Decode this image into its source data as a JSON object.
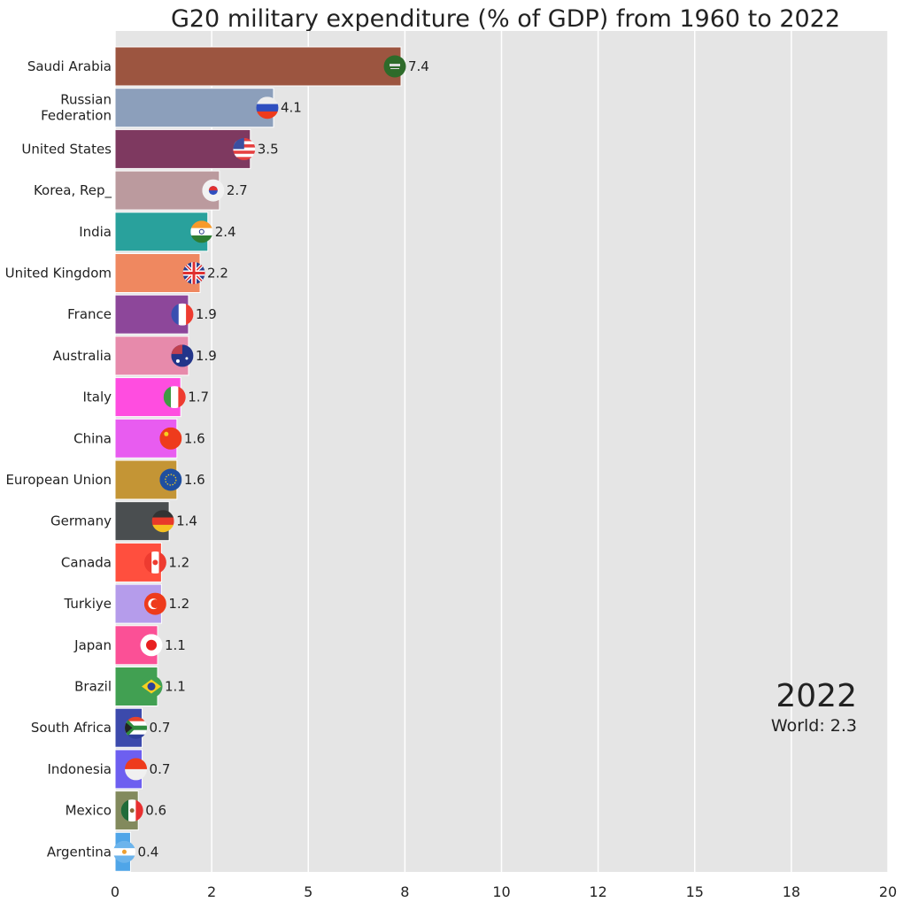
{
  "chart_data": {
    "type": "bar",
    "orientation": "horizontal",
    "title": "G20 military expenditure (% of GDP) from 1960 to 2022",
    "xlim": [
      0,
      20
    ],
    "x_ticks": [
      0,
      2.5,
      5,
      7.5,
      10,
      12.5,
      15,
      17.5,
      20
    ],
    "x_tick_labels": [
      "0",
      "2",
      "5",
      "8",
      "10",
      "12",
      "15",
      "18",
      "20"
    ],
    "grid": true,
    "year_label": "2022",
    "world_label": "World: 2.3",
    "categories": [
      "Saudi Arabia",
      "Russian\nFederation",
      "United States",
      "Korea, Rep_",
      "India",
      "United Kingdom",
      "France",
      "Australia",
      "Italy",
      "China",
      "European Union",
      "Germany",
      "Canada",
      "Turkiye",
      "Japan",
      "Brazil",
      "South Africa",
      "Indonesia",
      "Mexico",
      "Argentina"
    ],
    "values": [
      7.4,
      4.1,
      3.5,
      2.7,
      2.4,
      2.2,
      1.9,
      1.9,
      1.7,
      1.6,
      1.6,
      1.4,
      1.2,
      1.2,
      1.1,
      1.1,
      0.7,
      0.7,
      0.6,
      0.4
    ],
    "value_labels": [
      "7.4",
      "4.1",
      "3.5",
      "2.7",
      "2.4",
      "2.2",
      "1.9",
      "1.9",
      "1.7",
      "1.6",
      "1.6",
      "1.4",
      "1.2",
      "1.2",
      "1.1",
      "1.1",
      "0.7",
      "0.7",
      "0.6",
      "0.4"
    ],
    "colors": [
      "#9c5540",
      "#8c9fbb",
      "#7e3960",
      "#bb9a9e",
      "#29a19c",
      "#ef8860",
      "#8d479a",
      "#e78aab",
      "#ff4de0",
      "#e85cf0",
      "#c49535",
      "#4a4e50",
      "#ff4f3e",
      "#b59ceb",
      "#fb5096",
      "#41a052",
      "#3c4aac",
      "#6d5ff0",
      "#828a5d",
      "#4fa5e8"
    ],
    "flag_icons": [
      {
        "name": "saudi-arabia-flag-icon",
        "dir": "h",
        "stripes": [
          "#2e6b2a"
        ]
      },
      {
        "name": "russia-flag-icon",
        "dir": "h",
        "stripes": [
          "#eeeeee",
          "#2f4fc0",
          "#ee3b1c"
        ]
      },
      {
        "name": "usa-flag-icon",
        "dir": "h",
        "stripes": [
          "#e54040",
          "#ffffff",
          "#e54040",
          "#ffffff",
          "#e54040",
          "#ffffff",
          "#e54040"
        ]
      },
      {
        "name": "south-korea-flag-icon",
        "dir": "h",
        "stripes": [
          "#f2f2f2"
        ]
      },
      {
        "name": "india-flag-icon",
        "dir": "h",
        "stripes": [
          "#f79a2a",
          "#ffffff",
          "#2e7d32"
        ]
      },
      {
        "name": "uk-flag-icon",
        "dir": "h",
        "stripes": [
          "#2b3f8c"
        ]
      },
      {
        "name": "france-flag-icon",
        "dir": "v",
        "stripes": [
          "#3a4fb0",
          "#ffffff",
          "#ee3b30"
        ]
      },
      {
        "name": "australia-flag-icon",
        "dir": "h",
        "stripes": [
          "#23358a"
        ]
      },
      {
        "name": "italy-flag-icon",
        "dir": "v",
        "stripes": [
          "#3f9a44",
          "#ffffff",
          "#ee3b30"
        ]
      },
      {
        "name": "china-flag-icon",
        "dir": "h",
        "stripes": [
          "#ee3b1c"
        ]
      },
      {
        "name": "eu-flag-icon",
        "dir": "h",
        "stripes": [
          "#1f4fa0"
        ]
      },
      {
        "name": "germany-flag-icon",
        "dir": "h",
        "stripes": [
          "#333333",
          "#e83a2a",
          "#f5c020"
        ]
      },
      {
        "name": "canada-flag-icon",
        "dir": "v",
        "stripes": [
          "#ee3b30",
          "#ffffff",
          "#ee3b30"
        ]
      },
      {
        "name": "turkiye-flag-icon",
        "dir": "h",
        "stripes": [
          "#ee3b1c"
        ]
      },
      {
        "name": "japan-flag-icon",
        "dir": "h",
        "stripes": [
          "#ffffff"
        ]
      },
      {
        "name": "brazil-flag-icon",
        "dir": "h",
        "stripes": [
          "#41a052"
        ]
      },
      {
        "name": "south-africa-flag-icon",
        "dir": "h",
        "stripes": [
          "#e8432c",
          "#ffffff",
          "#2f8a3c",
          "#ffffff",
          "#2d3f9a"
        ]
      },
      {
        "name": "indonesia-flag-icon",
        "dir": "h",
        "stripes": [
          "#ee3b1c",
          "#f0f0f0"
        ]
      },
      {
        "name": "mexico-flag-icon",
        "dir": "v",
        "stripes": [
          "#1f6b3a",
          "#ffffff",
          "#e83030"
        ]
      },
      {
        "name": "argentina-flag-icon",
        "dir": "h",
        "stripes": [
          "#6cb4ec",
          "#ffffff",
          "#6cb4ec"
        ]
      }
    ],
    "background": "#e5e5e5",
    "gridline_color": "#ffffff"
  }
}
